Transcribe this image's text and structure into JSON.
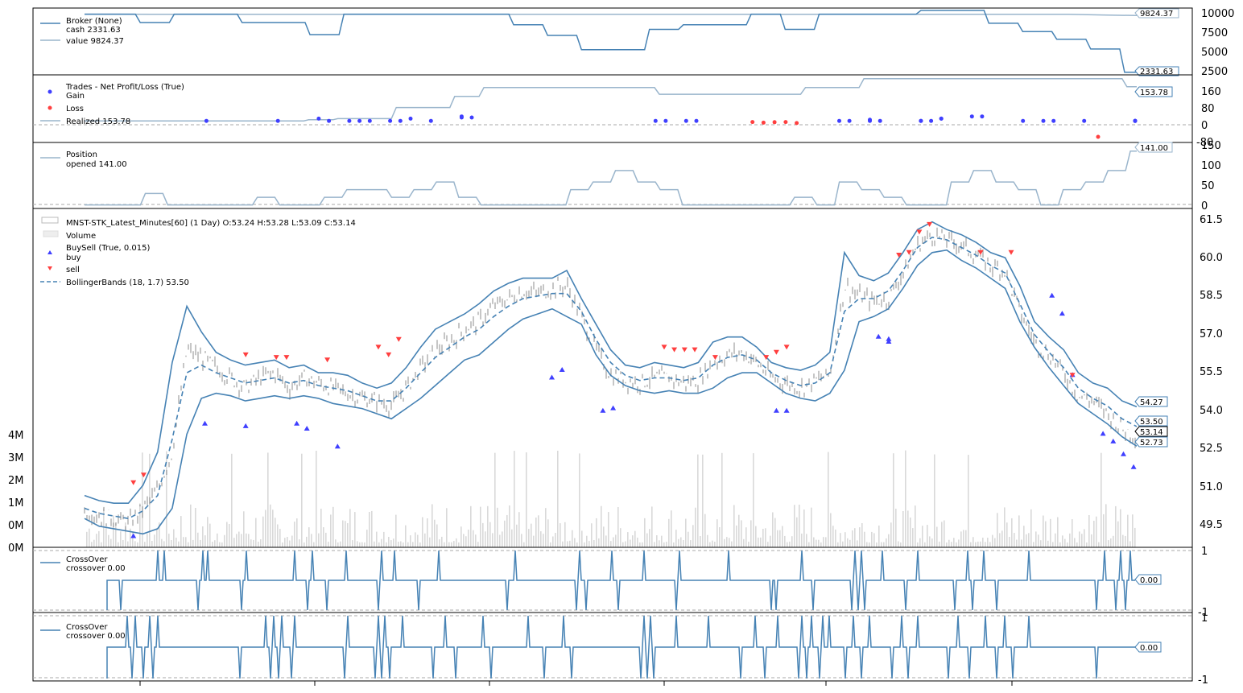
{
  "colors": {
    "primary": "#4682b4",
    "secondary": "#9ab5cc",
    "price": "#8c8c8c",
    "volume": "#d9d9d9",
    "buy": "#3f3fff",
    "sell": "#ff3f3f",
    "grid": "#aaaaaa"
  },
  "chart_data": [
    {
      "id": "broker",
      "type": "line",
      "legend": {
        "title": "Broker (None)",
        "entries": [
          "cash 2331.63",
          "value 9824.37"
        ]
      },
      "y_ticks": [
        "10000",
        "7500",
        "5000",
        "2500"
      ],
      "ylim": [
        2200,
        10600
      ],
      "badges": [
        "9824.37",
        "2331.63"
      ],
      "series": [
        {
          "name": "cash",
          "values": [
            10000,
            10000,
            8900,
            10000,
            10000,
            8900,
            8900,
            7300,
            10000,
            10000,
            10000,
            10000,
            10000,
            8600,
            7200,
            5300,
            5300,
            8000,
            8600,
            8600,
            10000,
            8000,
            10000,
            10000,
            10000,
            10500,
            10500,
            8800,
            7700,
            6700,
            5400,
            2331.63
          ]
        },
        {
          "name": "value",
          "values": [
            10000,
            10000,
            9990,
            9995,
            9992,
            9990,
            9988,
            9994,
            9990,
            9995,
            9990,
            9985,
            9990,
            9988,
            9992,
            9990,
            9985,
            9990,
            9993,
            9990,
            9995,
            9990,
            9994,
            9998,
            9990,
            9995,
            9990,
            9988,
            9990,
            9985,
            9900,
            9824.37
          ]
        }
      ]
    },
    {
      "id": "trades",
      "type": "scatter",
      "legend": {
        "title": "Trades - Net Profit/Loss (True)",
        "entries": [
          "Gain",
          "Loss",
          "Realized 153.78"
        ]
      },
      "y_ticks": [
        "160",
        "80",
        "0",
        "-80"
      ],
      "ylim": [
        -90,
        200
      ],
      "badges": [
        "153.78"
      ],
      "series": [
        {
          "name": "Realized",
          "values": [
            0,
            0,
            0,
            0,
            0,
            0,
            0,
            0,
            5,
            10,
            10,
            60,
            60,
            110,
            150,
            150,
            150,
            150,
            150,
            150,
            120,
            120,
            120,
            120,
            120,
            150,
            150,
            190,
            190,
            190,
            190,
            190,
            190,
            190,
            190,
            190,
            153.78
          ]
        },
        {
          "name": "Gain",
          "x": [
            0.08,
            0.15,
            0.19,
            0.2,
            0.22,
            0.23,
            0.24,
            0.26,
            0.27,
            0.28,
            0.3,
            0.33,
            0.33,
            0.34,
            0.52,
            0.53,
            0.55,
            0.56,
            0.7,
            0.71,
            0.73,
            0.73,
            0.74,
            0.78,
            0.78,
            0.79,
            0.8,
            0.8,
            0.83,
            0.84,
            0.88,
            0.9,
            0.91,
            0.94,
            0.99,
            1.02,
            1.03,
            1.04
          ],
          "y": [
            0,
            0,
            10,
            0,
            0,
            0,
            0,
            0,
            0,
            10,
            0,
            20,
            15,
            15,
            0,
            0,
            0,
            0,
            0,
            0,
            0,
            5,
            0,
            0,
            0,
            0,
            10,
            10,
            20,
            20,
            0,
            0,
            0,
            0,
            0,
            0,
            0,
            0
          ]
        },
        {
          "name": "Loss",
          "x": [
            0.59,
            0.6,
            0.61,
            0.62,
            0.63
          ],
          "y": [
            -5,
            -8,
            -6,
            -5,
            -10
          ]
        }
      ]
    },
    {
      "id": "position",
      "type": "line",
      "legend": {
        "title": "Position",
        "entries": [
          "opened 141.00"
        ]
      },
      "y_ticks": [
        "150",
        "100",
        "50",
        "0"
      ],
      "ylim": [
        -5,
        155
      ],
      "badges": [
        "141.00"
      ],
      "series": [
        {
          "name": "Position",
          "values": [
            0,
            0,
            0,
            30,
            0,
            0,
            0,
            0,
            20,
            0,
            0,
            20,
            40,
            40,
            20,
            40,
            60,
            20,
            0,
            0,
            0,
            0,
            40,
            60,
            90,
            60,
            40,
            0,
            0,
            0,
            0,
            0,
            20,
            0,
            60,
            40,
            20,
            0,
            0,
            60,
            90,
            60,
            40,
            0,
            40,
            60,
            90,
            141
          ]
        }
      ]
    },
    {
      "id": "price",
      "type": "line",
      "legend": {
        "title": "MNST-STK_Latest_Minutes[60] (1 Day) O:53.24 H:53.28 L:53.09 C:53.14",
        "entries": [
          "Volume",
          "BuySell (True, 0.015)",
          "buy",
          "sell",
          "BollingerBands (18, 1.7) 53.50"
        ]
      },
      "y_ticks": [
        "61.5",
        "60.0",
        "58.5",
        "57.0",
        "55.5",
        "54.0",
        "52.5",
        "51.0",
        "49.5"
      ],
      "volume_ticks": [
        "4M",
        "3M",
        "2M",
        "1M",
        "0M",
        "0M"
      ],
      "ylim": [
        48.9,
        61.9
      ],
      "badges": [
        "54.27",
        "53.50",
        "53.14",
        "52.73"
      ],
      "series": [
        {
          "name": "close",
          "values": [
            50.2,
            50.0,
            49.9,
            49.7,
            50.3,
            51.0,
            52.5,
            56.5,
            56.2,
            55.8,
            55.4,
            55.0,
            55.4,
            55.6,
            55.0,
            55.4,
            55.2,
            55.0,
            54.8,
            54.6,
            54.5,
            54.3,
            55.0,
            55.8,
            56.5,
            56.8,
            57.3,
            57.6,
            58.2,
            58.5,
            58.8,
            58.7,
            58.9,
            59.0,
            57.8,
            56.5,
            55.5,
            55.3,
            55.2,
            55.4,
            55.4,
            55.2,
            55.3,
            56.0,
            56.3,
            56.4,
            56.0,
            55.4,
            55.2,
            55.0,
            55.3,
            55.5,
            59.0,
            58.6,
            58.4,
            58.5,
            59.5,
            60.6,
            61.0,
            60.8,
            60.6,
            60.2,
            59.8,
            59.6,
            58.0,
            56.8,
            56.3,
            55.6,
            54.7,
            54.5,
            54.0,
            53.4,
            53.14
          ]
        },
        {
          "name": "upper",
          "values": [
            50.8,
            50.6,
            50.5,
            50.5,
            51.2,
            52.5,
            56.0,
            58.2,
            57.2,
            56.4,
            56.1,
            55.9,
            56.0,
            56.1,
            55.8,
            55.9,
            55.6,
            55.6,
            55.5,
            55.2,
            55.0,
            55.2,
            55.8,
            56.6,
            57.3,
            57.6,
            57.9,
            58.3,
            58.8,
            59.1,
            59.3,
            59.3,
            59.3,
            59.6,
            58.5,
            57.5,
            56.5,
            55.9,
            55.8,
            56.0,
            55.9,
            55.8,
            56.0,
            56.8,
            57.0,
            57.0,
            56.6,
            56.0,
            55.8,
            55.7,
            55.9,
            56.4,
            60.3,
            59.4,
            59.2,
            59.5,
            60.3,
            61.2,
            61.5,
            61.2,
            61.0,
            60.7,
            60.3,
            60.1,
            59.0,
            57.6,
            57.0,
            56.5,
            55.6,
            55.2,
            55.0,
            54.5,
            54.27
          ]
        },
        {
          "name": "mid",
          "values": [
            50.3,
            50.1,
            50.0,
            49.9,
            50.2,
            50.8,
            53.0,
            55.6,
            55.9,
            55.6,
            55.4,
            55.2,
            55.3,
            55.4,
            55.2,
            55.3,
            55.1,
            55.0,
            54.9,
            54.7,
            54.5,
            54.5,
            55.0,
            55.6,
            56.2,
            56.6,
            57.0,
            57.3,
            57.8,
            58.2,
            58.5,
            58.6,
            58.7,
            58.7,
            58.0,
            56.9,
            56.0,
            55.5,
            55.3,
            55.4,
            55.4,
            55.3,
            55.4,
            55.9,
            56.2,
            56.3,
            56.1,
            55.6,
            55.3,
            55.1,
            55.2,
            55.6,
            58.0,
            58.5,
            58.5,
            58.8,
            59.6,
            60.5,
            60.9,
            60.8,
            60.5,
            60.2,
            59.8,
            59.5,
            58.3,
            57.1,
            56.4,
            55.8,
            55.0,
            54.6,
            54.3,
            53.8,
            53.5
          ]
        },
        {
          "name": "lower",
          "values": [
            49.9,
            49.6,
            49.5,
            49.4,
            49.3,
            49.5,
            50.3,
            53.2,
            54.6,
            54.8,
            54.7,
            54.5,
            54.6,
            54.7,
            54.6,
            54.7,
            54.6,
            54.4,
            54.3,
            54.2,
            54.0,
            53.8,
            54.2,
            54.6,
            55.1,
            55.6,
            56.1,
            56.3,
            56.8,
            57.3,
            57.7,
            57.9,
            58.1,
            57.8,
            57.5,
            56.3,
            55.5,
            55.1,
            54.9,
            54.8,
            54.9,
            54.8,
            54.8,
            55.0,
            55.4,
            55.6,
            55.6,
            55.2,
            54.8,
            54.6,
            54.5,
            54.8,
            55.7,
            57.6,
            57.8,
            58.1,
            58.9,
            59.8,
            60.3,
            60.4,
            60.0,
            59.7,
            59.3,
            58.9,
            57.6,
            56.6,
            55.8,
            55.1,
            54.4,
            54.0,
            53.6,
            53.1,
            52.73
          ]
        },
        {
          "name": "buy",
          "x": [
            0.04,
            0.11,
            0.15,
            0.2,
            0.21,
            0.24,
            0.45,
            0.46,
            0.5,
            0.51,
            0.67,
            0.68,
            0.77,
            0.78,
            0.78,
            0.94,
            0.95,
            0.96,
            0.99,
            1.0,
            1.01,
            1.02
          ],
          "y": [
            49.2,
            53.6,
            53.5,
            53.6,
            53.4,
            52.7,
            55.4,
            55.7,
            54.1,
            54.2,
            54.1,
            54.1,
            57.0,
            56.9,
            56.8,
            58.6,
            57.9,
            55.5,
            53.2,
            52.9,
            52.4,
            51.9
          ]
        },
        {
          "name": "sell",
          "x": [
            0.04,
            0.05,
            0.15,
            0.18,
            0.19,
            0.23,
            0.28,
            0.29,
            0.3,
            0.56,
            0.57,
            0.58,
            0.59,
            0.61,
            0.66,
            0.67,
            0.68,
            0.79,
            0.8,
            0.81,
            0.82,
            0.87,
            0.9,
            0.96
          ],
          "y": [
            51.3,
            51.6,
            56.3,
            56.2,
            56.2,
            56.1,
            56.6,
            56.3,
            56.9,
            56.6,
            56.5,
            56.5,
            56.5,
            56.2,
            56.2,
            56.4,
            56.6,
            60.2,
            60.3,
            61.1,
            61.4,
            60.3,
            60.3,
            55.5
          ]
        }
      ]
    },
    {
      "id": "crossover1",
      "type": "line",
      "legend": {
        "title": "CrossOver",
        "entries": [
          "crossover 0.00"
        ]
      },
      "y_ticks": [
        "1",
        "-1"
      ],
      "ylim": [
        -1.1,
        1.1
      ],
      "badges": [
        "0.00"
      ]
    },
    {
      "id": "crossover2",
      "type": "line",
      "legend": {
        "title": "CrossOver",
        "entries": [
          "crossover 0.00"
        ]
      },
      "y_ticks": [
        "1",
        "-1"
      ],
      "ylim": [
        -1.1,
        1.1
      ],
      "badges": [
        "0.00"
      ]
    }
  ]
}
